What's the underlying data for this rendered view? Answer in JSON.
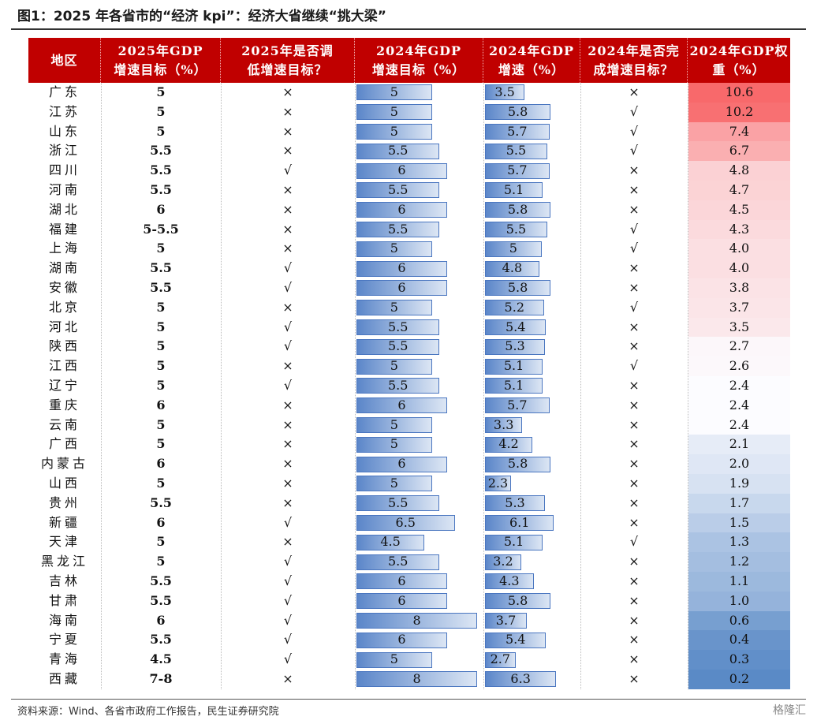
{
  "title": "图1：2025 年各省市的“经济 kpi”：经济大省继续“挑大梁”",
  "source": "资料来源：Wind、各省市政府工作报告，民生证券研究院",
  "watermark": "格隆汇",
  "colors": {
    "header_bg": "#c00000",
    "bar_dark": "#5b86c9",
    "bar_light": "#dce6f4",
    "weight_high": "#f8696b",
    "weight_mid": "#fcfcff",
    "weight_low": "#5a8ac6"
  },
  "chart_data": {
    "type": "table",
    "columns": [
      [
        "地区"
      ],
      [
        "2025年GDP",
        "增速目标（%）"
      ],
      [
        "2025年是否调",
        "低增速目标？"
      ],
      [
        "2024年GDP",
        "增速目标（%）"
      ],
      [
        "2024年GDP",
        "增速（%）"
      ],
      [
        "2024年是否完",
        "成增速目标？"
      ],
      [
        "2024年GDP权",
        "重（%）"
      ]
    ],
    "rows": [
      {
        "region": "广东",
        "target_2025": "5",
        "lowered": "×",
        "target_2024": "5",
        "growth_2024": "3.5",
        "met": "×",
        "weight": "10.6"
      },
      {
        "region": "江苏",
        "target_2025": "5",
        "lowered": "×",
        "target_2024": "5",
        "growth_2024": "5.8",
        "met": "√",
        "weight": "10.2"
      },
      {
        "region": "山东",
        "target_2025": "5",
        "lowered": "×",
        "target_2024": "5",
        "growth_2024": "5.7",
        "met": "√",
        "weight": "7.4"
      },
      {
        "region": "浙江",
        "target_2025": "5.5",
        "lowered": "×",
        "target_2024": "5.5",
        "growth_2024": "5.5",
        "met": "√",
        "weight": "6.7"
      },
      {
        "region": "四川",
        "target_2025": "5.5",
        "lowered": "√",
        "target_2024": "6",
        "growth_2024": "5.7",
        "met": "×",
        "weight": "4.8"
      },
      {
        "region": "河南",
        "target_2025": "5.5",
        "lowered": "×",
        "target_2024": "5.5",
        "growth_2024": "5.1",
        "met": "×",
        "weight": "4.7"
      },
      {
        "region": "湖北",
        "target_2025": "6",
        "lowered": "×",
        "target_2024": "6",
        "growth_2024": "5.8",
        "met": "×",
        "weight": "4.5"
      },
      {
        "region": "福建",
        "target_2025": "5-5.5",
        "lowered": "×",
        "target_2024": "5.5",
        "growth_2024": "5.5",
        "met": "√",
        "weight": "4.3"
      },
      {
        "region": "上海",
        "target_2025": "5",
        "lowered": "×",
        "target_2024": "5",
        "growth_2024": "5",
        "met": "√",
        "weight": "4.0"
      },
      {
        "region": "湖南",
        "target_2025": "5.5",
        "lowered": "√",
        "target_2024": "6",
        "growth_2024": "4.8",
        "met": "×",
        "weight": "4.0"
      },
      {
        "region": "安徽",
        "target_2025": "5.5",
        "lowered": "√",
        "target_2024": "6",
        "growth_2024": "5.8",
        "met": "×",
        "weight": "3.8"
      },
      {
        "region": "北京",
        "target_2025": "5",
        "lowered": "×",
        "target_2024": "5",
        "growth_2024": "5.2",
        "met": "√",
        "weight": "3.7"
      },
      {
        "region": "河北",
        "target_2025": "5",
        "lowered": "√",
        "target_2024": "5.5",
        "growth_2024": "5.4",
        "met": "×",
        "weight": "3.5"
      },
      {
        "region": "陕西",
        "target_2025": "5",
        "lowered": "√",
        "target_2024": "5.5",
        "growth_2024": "5.3",
        "met": "×",
        "weight": "2.7"
      },
      {
        "region": "江西",
        "target_2025": "5",
        "lowered": "×",
        "target_2024": "5",
        "growth_2024": "5.1",
        "met": "√",
        "weight": "2.6"
      },
      {
        "region": "辽宁",
        "target_2025": "5",
        "lowered": "√",
        "target_2024": "5.5",
        "growth_2024": "5.1",
        "met": "×",
        "weight": "2.4"
      },
      {
        "region": "重庆",
        "target_2025": "6",
        "lowered": "×",
        "target_2024": "6",
        "growth_2024": "5.7",
        "met": "×",
        "weight": "2.4"
      },
      {
        "region": "云南",
        "target_2025": "5",
        "lowered": "×",
        "target_2024": "5",
        "growth_2024": "3.3",
        "met": "×",
        "weight": "2.4"
      },
      {
        "region": "广西",
        "target_2025": "5",
        "lowered": "×",
        "target_2024": "5",
        "growth_2024": "4.2",
        "met": "×",
        "weight": "2.1"
      },
      {
        "region": "内蒙古",
        "target_2025": "6",
        "lowered": "×",
        "target_2024": "6",
        "growth_2024": "5.8",
        "met": "×",
        "weight": "2.0"
      },
      {
        "region": "山西",
        "target_2025": "5",
        "lowered": "×",
        "target_2024": "5",
        "growth_2024": "2.3",
        "met": "×",
        "weight": "1.9"
      },
      {
        "region": "贵州",
        "target_2025": "5.5",
        "lowered": "×",
        "target_2024": "5.5",
        "growth_2024": "5.3",
        "met": "×",
        "weight": "1.7"
      },
      {
        "region": "新疆",
        "target_2025": "6",
        "lowered": "√",
        "target_2024": "6.5",
        "growth_2024": "6.1",
        "met": "×",
        "weight": "1.5"
      },
      {
        "region": "天津",
        "target_2025": "5",
        "lowered": "×",
        "target_2024": "4.5",
        "growth_2024": "5.1",
        "met": "√",
        "weight": "1.3"
      },
      {
        "region": "黑龙江",
        "target_2025": "5",
        "lowered": "√",
        "target_2024": "5.5",
        "growth_2024": "3.2",
        "met": "×",
        "weight": "1.2"
      },
      {
        "region": "吉林",
        "target_2025": "5.5",
        "lowered": "√",
        "target_2024": "6",
        "growth_2024": "4.3",
        "met": "×",
        "weight": "1.1"
      },
      {
        "region": "甘肃",
        "target_2025": "5.5",
        "lowered": "√",
        "target_2024": "6",
        "growth_2024": "5.8",
        "met": "×",
        "weight": "1.0"
      },
      {
        "region": "海南",
        "target_2025": "6",
        "lowered": "√",
        "target_2024": "8",
        "growth_2024": "3.7",
        "met": "×",
        "weight": "0.6"
      },
      {
        "region": "宁夏",
        "target_2025": "5.5",
        "lowered": "√",
        "target_2024": "6",
        "growth_2024": "5.4",
        "met": "×",
        "weight": "0.4"
      },
      {
        "region": "青海",
        "target_2025": "4.5",
        "lowered": "√",
        "target_2024": "5",
        "growth_2024": "2.7",
        "met": "×",
        "weight": "0.3"
      },
      {
        "region": "西藏",
        "target_2025": "7-8",
        "lowered": "×",
        "target_2024": "8",
        "growth_2024": "6.3",
        "met": "×",
        "weight": "0.2"
      }
    ],
    "bar_scale_max": 8.3
  }
}
